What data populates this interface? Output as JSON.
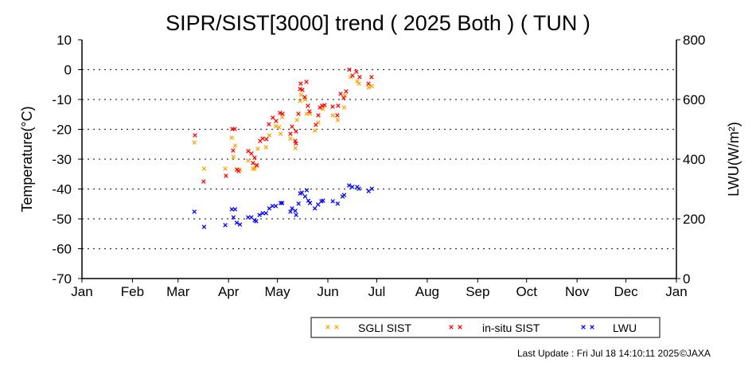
{
  "chart_data": {
    "type": "scatter",
    "title": "SIPR/SIST[3000] trend ( 2025 Both ) ( TUN )",
    "xlabel": "",
    "ylabel": "Temperature(°C)",
    "ylabel_right": "LWU(W/m²)",
    "x_unit": "day of year 2025",
    "xlim": [
      0,
      365
    ],
    "ylim": [
      -70,
      10
    ],
    "ylim_right": [
      0,
      800
    ],
    "x_ticks": [
      {
        "label": "Jan",
        "day": 0
      },
      {
        "label": "Feb",
        "day": 31
      },
      {
        "label": "Mar",
        "day": 59
      },
      {
        "label": "Apr",
        "day": 90
      },
      {
        "label": "May",
        "day": 120
      },
      {
        "label": "Jun",
        "day": 151
      },
      {
        "label": "Jul",
        "day": 181
      },
      {
        "label": "Aug",
        "day": 212
      },
      {
        "label": "Sep",
        "day": 243
      },
      {
        "label": "Oct",
        "day": 273
      },
      {
        "label": "Nov",
        "day": 304
      },
      {
        "label": "Dec",
        "day": 334
      },
      {
        "label": "Jan",
        "day": 365
      }
    ],
    "y_ticks": [
      "10",
      "0",
      "-10",
      "-20",
      "-30",
      "-40",
      "-50",
      "-60",
      "-70"
    ],
    "y_ticks_right": [
      "800",
      "600",
      "400",
      "200",
      "0"
    ],
    "grid": "horizontal dotted",
    "legend_position": "bottom-center",
    "series": [
      {
        "name": "SGLI SIST",
        "axis": "left",
        "color": "#FFA500",
        "points": [
          [
            69,
            -24.4
          ],
          [
            75,
            -33.2
          ],
          [
            88,
            -33.2
          ],
          [
            92,
            -22.8
          ],
          [
            93,
            -29.2
          ],
          [
            94,
            -25.5
          ],
          [
            95,
            -33.5
          ],
          [
            97,
            -33.5
          ],
          [
            102,
            -30.5
          ],
          [
            105,
            -33.2
          ],
          [
            106,
            -33.2
          ],
          [
            107,
            -31.9
          ],
          [
            108,
            -26.5
          ],
          [
            113,
            -26
          ],
          [
            115,
            -22
          ],
          [
            119,
            -19
          ],
          [
            121,
            -19.3
          ],
          [
            122,
            -21.5
          ],
          [
            123,
            -15.9
          ],
          [
            128,
            -23.1
          ],
          [
            131,
            -26.3
          ],
          [
            132,
            -16.9
          ],
          [
            134,
            -10.5
          ],
          [
            134.5,
            -8.4
          ],
          [
            137,
            -10
          ],
          [
            138,
            -14.8
          ],
          [
            140,
            -14.8
          ],
          [
            143,
            -20.4
          ],
          [
            145,
            -17.7
          ],
          [
            148,
            -13.2
          ],
          [
            154,
            -15.3
          ],
          [
            157,
            -16.9
          ],
          [
            161,
            -12.7
          ],
          [
            161.5,
            -8.7
          ],
          [
            165,
            -2.5
          ],
          [
            169,
            -3.9
          ],
          [
            170,
            -4.7
          ],
          [
            176,
            -6
          ],
          [
            178,
            -5.5
          ]
        ]
      },
      {
        "name": "in-situ SIST",
        "axis": "left",
        "color": "#FF0000",
        "points": [
          [
            69.4,
            -22
          ],
          [
            74.7,
            -37.5
          ],
          [
            88.4,
            -35.6
          ],
          [
            92.3,
            -19.9
          ],
          [
            93.8,
            -19.9
          ],
          [
            92.8,
            -27.1
          ],
          [
            95.3,
            -33.5
          ],
          [
            96.2,
            -34
          ],
          [
            102.1,
            -27.3
          ],
          [
            104,
            -28.1
          ],
          [
            105,
            -31.3
          ],
          [
            106,
            -29.5
          ],
          [
            107.4,
            -32.1
          ],
          [
            109.4,
            -23.9
          ],
          [
            110.9,
            -23.1
          ],
          [
            113.3,
            -23.3
          ],
          [
            114.8,
            -18.3
          ],
          [
            117.2,
            -16.1
          ],
          [
            119.2,
            -17.2
          ],
          [
            121.6,
            -14.5
          ],
          [
            123.1,
            -14.8
          ],
          [
            128,
            -21.5
          ],
          [
            129,
            -19.1
          ],
          [
            131.4,
            -20.7
          ],
          [
            130.9,
            -23.9
          ],
          [
            131.4,
            -24.7
          ],
          [
            132.9,
            -14.8
          ],
          [
            134.3,
            -4.7
          ],
          [
            133.9,
            -6.5
          ],
          [
            135.3,
            -6.8
          ],
          [
            137.8,
            -4.1
          ],
          [
            136.8,
            -9.2
          ],
          [
            138.7,
            -12.1
          ],
          [
            139.7,
            -14
          ],
          [
            143.6,
            -18.5
          ],
          [
            145.1,
            -15.3
          ],
          [
            146.1,
            -12.7
          ],
          [
            147.5,
            -12.1
          ],
          [
            149,
            -11.9
          ],
          [
            153.9,
            -12.4
          ],
          [
            156.8,
            -15.3
          ],
          [
            157.3,
            -12.1
          ],
          [
            158.8,
            -8.1
          ],
          [
            160.7,
            -9.5
          ],
          [
            162.2,
            -7.3
          ],
          [
            164.1,
            0
          ],
          [
            166.1,
            -2
          ],
          [
            168.5,
            -0.7
          ],
          [
            170.5,
            -2.5
          ],
          [
            175.9,
            -4.7
          ],
          [
            177.8,
            -2.5
          ]
        ]
      },
      {
        "name": "LWU",
        "axis": "right",
        "color": "#0000FF",
        "points": [
          [
            69,
            224
          ],
          [
            75,
            173
          ],
          [
            88,
            179
          ],
          [
            92,
            232
          ],
          [
            94,
            232
          ],
          [
            93,
            205
          ],
          [
            95,
            187
          ],
          [
            97,
            181
          ],
          [
            102,
            205
          ],
          [
            104,
            205
          ],
          [
            106,
            195
          ],
          [
            107,
            192
          ],
          [
            109,
            213
          ],
          [
            111,
            219
          ],
          [
            113,
            219
          ],
          [
            115,
            235
          ],
          [
            117,
            243
          ],
          [
            119,
            243
          ],
          [
            122,
            253
          ],
          [
            123,
            253
          ],
          [
            128,
            224
          ],
          [
            129,
            235
          ],
          [
            131,
            227
          ],
          [
            131.5,
            213
          ],
          [
            133,
            251
          ],
          [
            134,
            285
          ],
          [
            135,
            288
          ],
          [
            138,
            296
          ],
          [
            137,
            275
          ],
          [
            139,
            261
          ],
          [
            140,
            253
          ],
          [
            143,
            235
          ],
          [
            145,
            248
          ],
          [
            147,
            259
          ],
          [
            148,
            261
          ],
          [
            154,
            259
          ],
          [
            157,
            251
          ],
          [
            160,
            275
          ],
          [
            161,
            280
          ],
          [
            164,
            312
          ],
          [
            166,
            307
          ],
          [
            169,
            307
          ],
          [
            170,
            301
          ],
          [
            176,
            293
          ],
          [
            178,
            301
          ]
        ]
      }
    ]
  },
  "footer": {
    "last_update": "Last Update : Fri Jul 18 14:10:11 2025",
    "copyright": "©JAXA"
  }
}
